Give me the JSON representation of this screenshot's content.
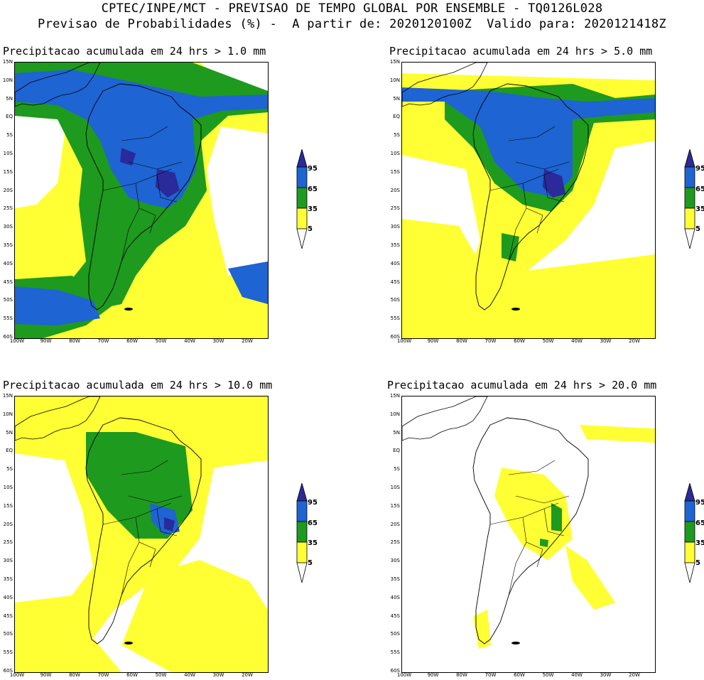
{
  "header": {
    "line1": "CPTEC/INPE/MCT - PREVISAO DE TEMPO GLOBAL POR ENSEMBLE - TQ0126L028",
    "line2": "Previsao de Probabilidades (%) -  A partir de: 2020120100Z  Valido para: 2020121418Z"
  },
  "panels": [
    {
      "title": "Precipitacao acumulada em 24 hrs > 1.0 mm"
    },
    {
      "title": "Precipitacao acumulada em 24 hrs > 5.0 mm"
    },
    {
      "title": "Precipitacao acumulada em 24 hrs > 10.0 mm"
    },
    {
      "title": "Precipitacao acumulada em 24 hrs > 20.0 mm"
    }
  ],
  "lat_labels": [
    "15N",
    "10N",
    "5N",
    "EQ",
    "5S",
    "10S",
    "15S",
    "20S",
    "25S",
    "30S",
    "35S",
    "40S",
    "45S",
    "50S",
    "55S",
    "60S"
  ],
  "lon_labels": [
    "100W",
    "90W",
    "80W",
    "70W",
    "60W",
    "50W",
    "40W",
    "30W",
    "20W"
  ],
  "colorbar": {
    "levels": [
      "95",
      "65",
      "35",
      "5"
    ],
    "colors": {
      "c95": "#2a2a9a",
      "c65": "#1e64d2",
      "c35": "#1e9a1e",
      "c5": "#ffff33"
    }
  }
}
